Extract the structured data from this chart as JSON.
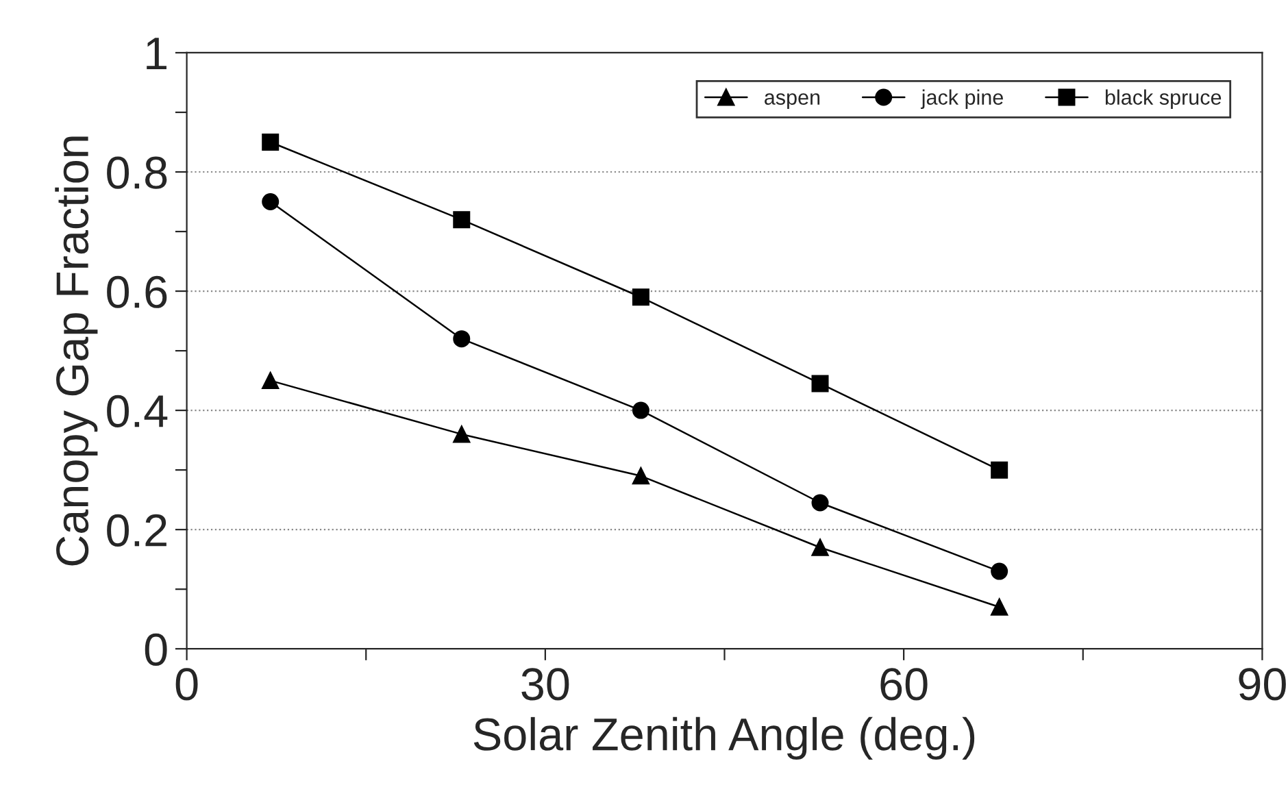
{
  "chart_data": {
    "type": "line",
    "xlabel": "Solar Zenith Angle (deg.)",
    "ylabel": "Canopy Gap Fraction",
    "xlim": [
      0,
      90
    ],
    "xticks": [
      0,
      {
        "value": 15,
        "label": null
      },
      30,
      {
        "value": 45,
        "label": null
      },
      60,
      {
        "value": 75,
        "label": null
      },
      90
    ],
    "ylim": [
      0,
      1
    ],
    "yticks": [
      0,
      {
        "value": 0.1,
        "label": null
      },
      0.2,
      {
        "value": 0.3,
        "label": null
      },
      0.4,
      {
        "value": 0.5,
        "label": null
      },
      0.6,
      {
        "value": 0.7,
        "label": null
      },
      0.8,
      {
        "value": 0.9,
        "label": null
      },
      1
    ],
    "grid": "y",
    "legend": "top right",
    "series": [
      {
        "name": "aspen",
        "color": "#000000",
        "marker": "triangle",
        "x": [
          7,
          23,
          38,
          53,
          68
        ],
        "values": [
          0.45,
          0.36,
          0.29,
          0.17,
          0.07
        ]
      },
      {
        "name": "jack pine",
        "color": "#000000",
        "marker": "circle",
        "x": [
          7,
          23,
          38,
          53,
          68
        ],
        "values": [
          0.75,
          0.52,
          0.4,
          0.245,
          0.13
        ]
      },
      {
        "name": "black spruce",
        "color": "#000000",
        "marker": "square",
        "x": [
          7,
          23,
          38,
          53,
          68
        ],
        "values": [
          0.85,
          0.72,
          0.59,
          0.445,
          0.3
        ]
      }
    ]
  }
}
